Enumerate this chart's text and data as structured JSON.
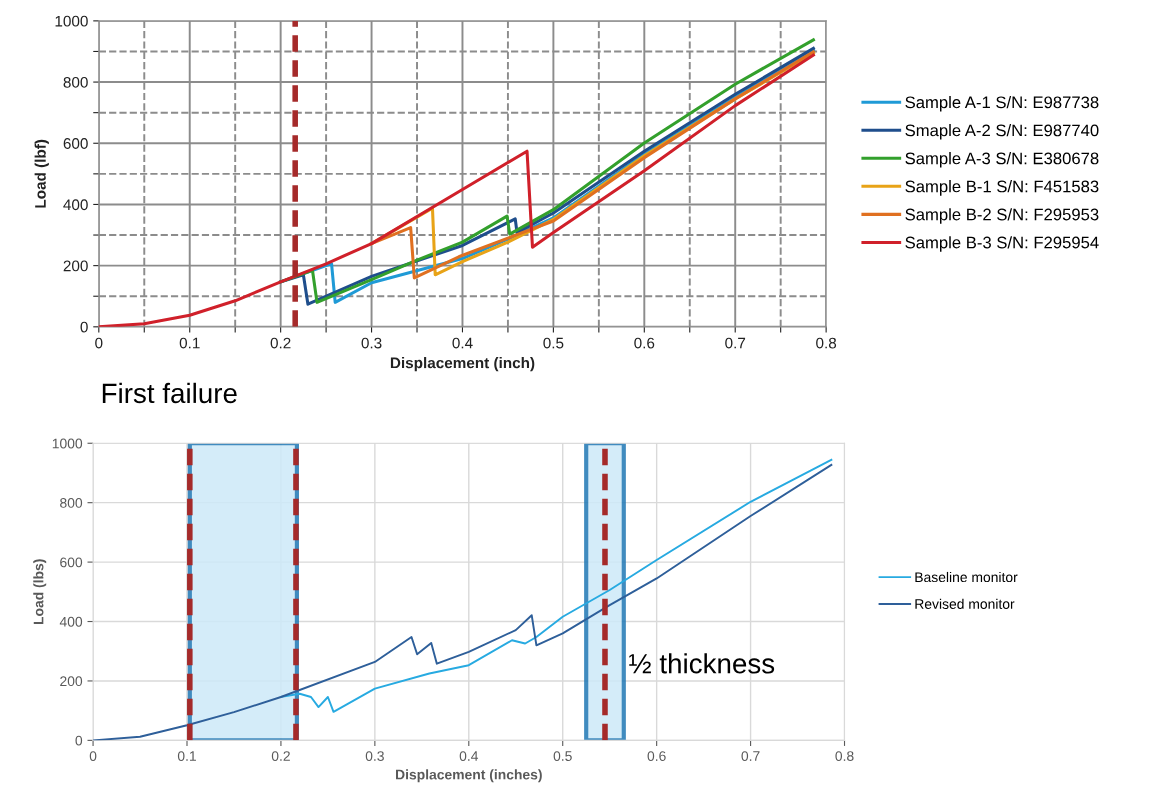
{
  "chart_data": [
    {
      "type": "line",
      "xlabel": "Displacement (inch)",
      "ylabel": "Load (lbf)",
      "xlim": [
        0,
        0.8
      ],
      "ylim": [
        0,
        1000
      ],
      "xticks": [
        0,
        {
          "value": 0.05,
          "label": null
        },
        0.1,
        {
          "value": 0.15,
          "label": null
        },
        0.2,
        {
          "value": 0.25,
          "label": null
        },
        0.3,
        {
          "value": 0.35,
          "label": null
        },
        0.4,
        {
          "value": 0.45,
          "label": null
        },
        0.5,
        {
          "value": 0.55,
          "label": null
        },
        0.6,
        {
          "value": 0.65,
          "label": null
        },
        0.7,
        {
          "value": 0.75,
          "label": null
        },
        0.8
      ],
      "yticks": [
        0,
        {
          "value": 100,
          "label": null
        },
        200,
        {
          "value": 300,
          "label": null
        },
        400,
        {
          "value": 500,
          "label": null
        },
        600,
        {
          "value": 700,
          "label": null
        },
        800,
        {
          "value": 900,
          "label": null
        },
        1000
      ],
      "grid": true,
      "legend": "right",
      "line_style": "solid",
      "ref_lines": [
        {
          "axis": "x",
          "value": 0.216,
          "color": "#a52a2a",
          "line_style": "dashed"
        }
      ],
      "series": [
        {
          "name": "Sample A-1 S/N: E987738",
          "color": "#1f9ad6",
          "x": [
            0.2,
            0.25,
            0.256,
            0.26,
            0.3,
            0.4,
            0.45,
            0.5,
            0.6,
            0.7,
            0.786
          ],
          "values": [
            147,
            200,
            206,
            80,
            144,
            223,
            287,
            356,
            564,
            750,
            904
          ]
        },
        {
          "name": "Smaple A-2 S/N: E987740",
          "color": "#1f4e8c",
          "x": [
            0.2,
            0.225,
            0.23,
            0.3,
            0.4,
            0.458,
            0.46,
            0.5,
            0.6,
            0.7,
            0.786
          ],
          "values": [
            147,
            170,
            74,
            165,
            266,
            353,
            308,
            372,
            574,
            760,
            910
          ]
        },
        {
          "name": "Sample A-3 S/N: E380678",
          "color": "#33a02c",
          "x": [
            0.2,
            0.235,
            0.24,
            0.3,
            0.35,
            0.4,
            0.449,
            0.452,
            0.5,
            0.6,
            0.7,
            0.786
          ],
          "values": [
            147,
            185,
            80,
            154,
            218,
            277,
            362,
            303,
            383,
            601,
            793,
            938
          ]
        },
        {
          "name": "Sample B-1 S/N: F451583",
          "color": "#e8a317",
          "x": [
            0.3,
            0.367,
            0.37,
            0.4,
            0.45,
            0.5,
            0.6,
            0.7,
            0.786
          ],
          "values": [
            272,
            388,
            170,
            213,
            277,
            351,
            559,
            745,
            894
          ]
        },
        {
          "name": "Sample B-2 S/N: F295953",
          "color": "#e07020",
          "x": [
            0.3,
            0.343,
            0.347,
            0.396,
            0.457,
            0.5,
            0.6,
            0.7,
            0.786
          ],
          "values": [
            272,
            324,
            160,
            229,
            298,
            346,
            553,
            745,
            899
          ]
        },
        {
          "name": "Sample B-3 S/N: F295954",
          "color": "#d0202a",
          "x": [
            0,
            0.05,
            0.1,
            0.15,
            0.2,
            0.25,
            0.3,
            0.4,
            0.471,
            0.477,
            0.5,
            0.6,
            0.7,
            0.786
          ],
          "values": [
            0,
            10,
            38,
            85,
            147,
            206,
            272,
            449,
            574,
            260,
            308,
            510,
            723,
            888
          ]
        }
      ]
    },
    {
      "type": "line",
      "xlabel": "Displacement (inches)",
      "ylabel": "Load (lbs)",
      "xlim": [
        0,
        0.8
      ],
      "ylim": [
        0,
        1000
      ],
      "xticks": [
        0,
        0.1,
        0.2,
        0.3,
        0.4,
        0.5,
        0.6,
        0.7,
        0.8
      ],
      "yticks": [
        0,
        200,
        400,
        600,
        800,
        1000
      ],
      "grid": true,
      "legend": "right",
      "line_style": "solid",
      "ref_lines": [
        {
          "axis": "x",
          "value": 0.103,
          "color": "#a52a2a",
          "line_style": "dashed"
        },
        {
          "axis": "x",
          "value": 0.216,
          "color": "#a52a2a",
          "line_style": "dashed"
        },
        {
          "axis": "x",
          "value": 0.545,
          "color": "#a52a2a",
          "line_style": "dashed"
        }
      ],
      "bands": [
        {
          "axis": "x",
          "from": 0.103,
          "to": 0.217,
          "color": "#cde9f8"
        },
        {
          "axis": "x",
          "from": 0.525,
          "to": 0.565,
          "color": "#cde9f8"
        }
      ],
      "annotations": [
        "First failure",
        {
          "text": "½ thickness",
          "x": 0.57,
          "y": 250
        }
      ],
      "series": [
        {
          "name": "Baseline monitor",
          "color": "#27aae1",
          "x": [
            0.2,
            0.22,
            0.232,
            0.24,
            0.25,
            0.256,
            0.3,
            0.358,
            0.4,
            0.446,
            0.46,
            0.472,
            0.5,
            0.55,
            0.6,
            0.7,
            0.786
          ],
          "values": [
            146,
            157,
            146,
            112,
            146,
            96,
            174,
            225,
            253,
            337,
            326,
            348,
            416,
            506,
            607,
            803,
            944
          ]
        },
        {
          "name": "Revised monitor",
          "color": "#2e5f9a",
          "x": [
            0,
            0.05,
            0.1,
            0.15,
            0.2,
            0.3,
            0.339,
            0.345,
            0.36,
            0.366,
            0.4,
            0.45,
            0.467,
            0.472,
            0.5,
            0.55,
            0.6,
            0.7,
            0.786
          ],
          "values": [
            0,
            12,
            51,
            95,
            146,
            264,
            348,
            290,
            328,
            258,
            298,
            371,
            421,
            320,
            360,
            455,
            545,
            755,
            927
          ]
        }
      ]
    }
  ]
}
